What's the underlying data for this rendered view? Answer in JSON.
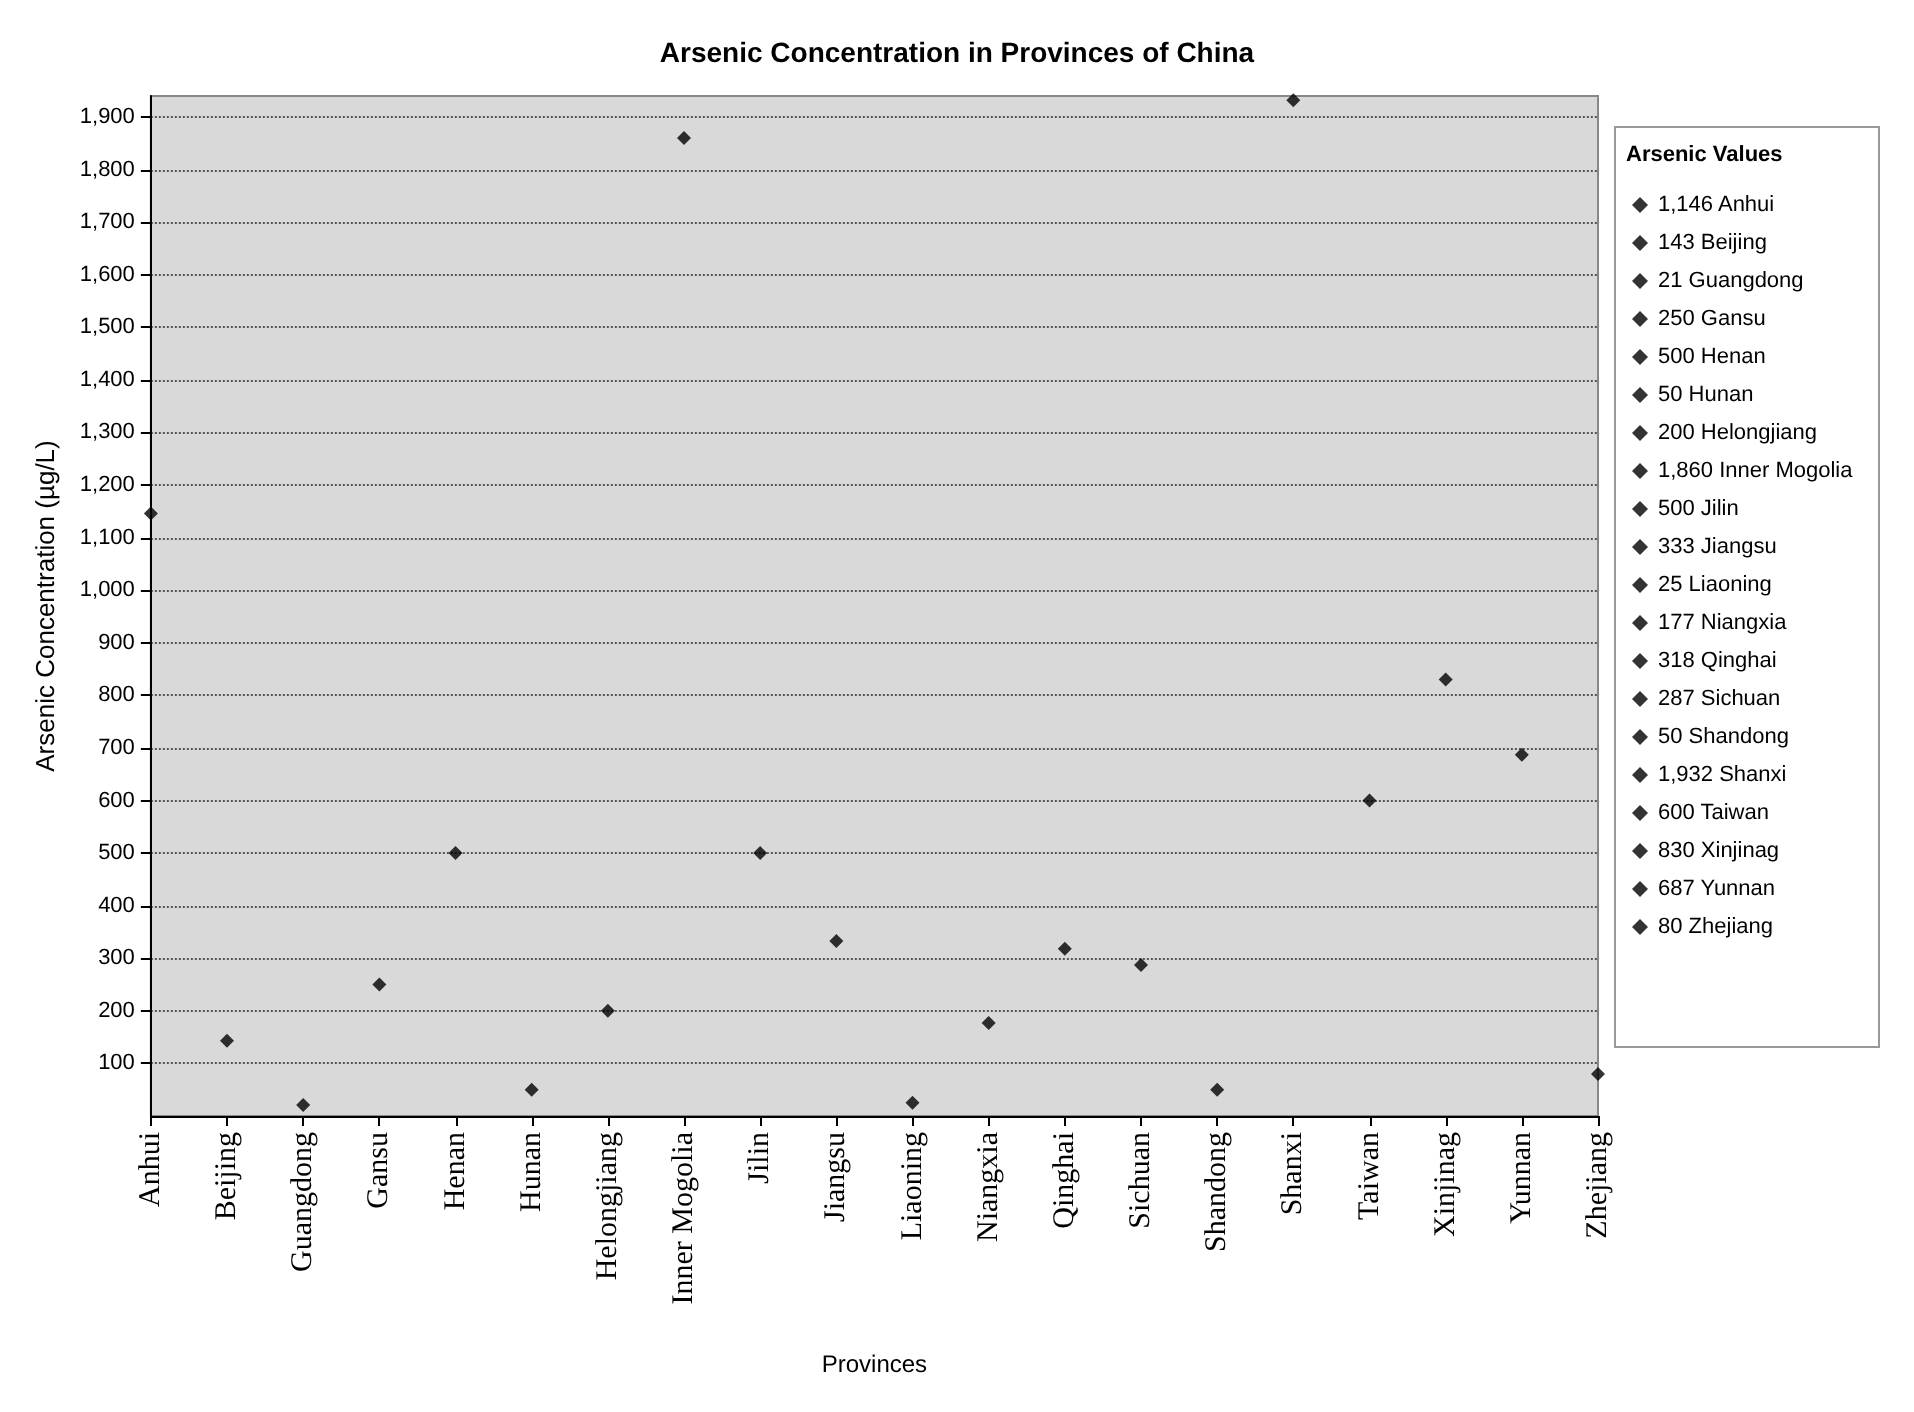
{
  "chart_data": {
    "type": "scatter",
    "title": "Arsenic Concentration in Provinces of China",
    "xlabel": "Provinces",
    "ylabel": "Arsenic Concentration (µg/L)",
    "legend_title": "Arsenic Values",
    "categories": [
      "Anhui",
      "Beijing",
      "Guangdong",
      "Gansu",
      "Henan",
      "Hunan",
      "Helongjiang",
      "Inner Mogolia",
      "Jilin",
      "Jiangsu",
      "Liaoning",
      "Niangxia",
      "Qinghai",
      "Sichuan",
      "Shandong",
      "Shanxi",
      "Taiwan",
      "Xinjinag",
      "Yunnan",
      "Zhejiang"
    ],
    "series": [
      {
        "name": "1,146 Anhui",
        "color": "#000000",
        "x": [
          "Anhui"
        ],
        "values": [
          1146
        ]
      },
      {
        "name": "143 Beijing",
        "color": "#000000",
        "x": [
          "Beijing"
        ],
        "values": [
          143
        ]
      },
      {
        "name": "21 Guangdong",
        "color": "#000000",
        "x": [
          "Guangdong"
        ],
        "values": [
          21
        ]
      },
      {
        "name": "250 Gansu",
        "color": "#000000",
        "x": [
          "Gansu"
        ],
        "values": [
          250
        ]
      },
      {
        "name": "500 Henan",
        "color": "#000000",
        "x": [
          "Henan"
        ],
        "values": [
          500
        ]
      },
      {
        "name": "50 Hunan",
        "color": "#000000",
        "x": [
          "Hunan"
        ],
        "values": [
          50
        ]
      },
      {
        "name": "200 Helongjiang",
        "color": "#000000",
        "x": [
          "Helongjiang"
        ],
        "values": [
          200
        ]
      },
      {
        "name": "1,860 Inner Mogolia",
        "color": "#000000",
        "x": [
          "Inner Mogolia"
        ],
        "values": [
          1860
        ]
      },
      {
        "name": "500 Jilin",
        "color": "#000000",
        "x": [
          "Jilin"
        ],
        "values": [
          500
        ]
      },
      {
        "name": "333 Jiangsu",
        "color": "#000000",
        "x": [
          "Jiangsu"
        ],
        "values": [
          333
        ]
      },
      {
        "name": "25 Liaoning",
        "color": "#000000",
        "x": [
          "Liaoning"
        ],
        "values": [
          25
        ]
      },
      {
        "name": "177 Niangxia",
        "color": "#000000",
        "x": [
          "Niangxia"
        ],
        "values": [
          177
        ]
      },
      {
        "name": "318 Qinghai",
        "color": "#000000",
        "x": [
          "Qinghai"
        ],
        "values": [
          318
        ]
      },
      {
        "name": "287 Sichuan",
        "color": "#000000",
        "x": [
          "Sichuan"
        ],
        "values": [
          287
        ]
      },
      {
        "name": "50 Shandong",
        "color": "#000000",
        "x": [
          "Shandong"
        ],
        "values": [
          50
        ]
      },
      {
        "name": "1,932 Shanxi",
        "color": "#000000",
        "x": [
          "Shanxi"
        ],
        "values": [
          1932
        ]
      },
      {
        "name": "600 Taiwan",
        "color": "#000000",
        "x": [
          "Taiwan"
        ],
        "values": [
          600
        ]
      },
      {
        "name": "830 Xinjinag",
        "color": "#000000",
        "x": [
          "Xinjinag"
        ],
        "values": [
          830
        ]
      },
      {
        "name": "687 Yunnan",
        "color": "#000000",
        "x": [
          "Yunnan"
        ],
        "values": [
          687
        ]
      },
      {
        "name": "80 Zhejiang",
        "color": "#000000",
        "x": [
          "Zhejiang"
        ],
        "values": [
          80
        ]
      }
    ],
    "ylim": [
      0,
      1940
    ],
    "yticks": [
      100,
      200,
      300,
      400,
      500,
      600,
      700,
      800,
      900,
      {
        "value": 1000,
        "label": "1,000"
      },
      {
        "value": 1100,
        "label": "1,100"
      },
      {
        "value": 1200,
        "label": "1,200"
      },
      {
        "value": 1300,
        "label": "1,300"
      },
      {
        "value": 1400,
        "label": "1,400"
      },
      {
        "value": 1500,
        "label": "1,500"
      },
      {
        "value": 1600,
        "label": "1,600"
      },
      {
        "value": 1700,
        "label": "1,700"
      },
      {
        "value": 1800,
        "label": "1,800"
      },
      {
        "value": 1900,
        "label": "1,900"
      }
    ],
    "grid": "y",
    "legend": "right",
    "marker": "diamond"
  }
}
